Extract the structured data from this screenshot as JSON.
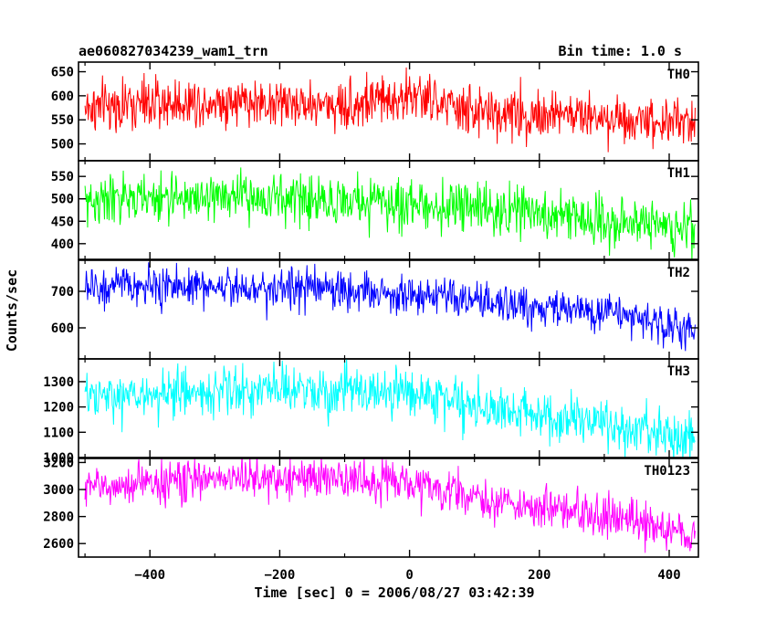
{
  "header": {
    "title": "ae060827034239_wam1_trn",
    "bin_time": "Bin time: 1.0 s"
  },
  "chart_data": {
    "type": "line",
    "xlabel": "Time [sec] 0 = 2006/08/27 03:42:39",
    "ylabel": "Counts/sec",
    "xlim": [
      -510,
      445
    ],
    "x_range": [
      -500,
      440
    ],
    "x_ticks": [
      -400,
      -200,
      0,
      200,
      400
    ],
    "x_tick_labels": [
      "−400",
      "−200",
      "0",
      "200",
      "400"
    ],
    "panels": [
      {
        "name": "TH0",
        "color": "#ff0000",
        "ylim": [
          465,
          670
        ],
        "y_ticks": [
          500,
          550,
          600,
          650
        ],
        "trend": [
          [
            -500,
            575
          ],
          [
            -300,
            590
          ],
          [
            -100,
            580
          ],
          [
            0,
            600
          ],
          [
            100,
            565
          ],
          [
            250,
            560
          ],
          [
            440,
            545
          ]
        ],
        "noise": 26
      },
      {
        "name": "TH1",
        "color": "#00ff00",
        "ylim": [
          365,
          585
        ],
        "y_ticks": [
          400,
          450,
          500,
          550
        ],
        "trend": [
          [
            -500,
            495
          ],
          [
            -300,
            505
          ],
          [
            -100,
            495
          ],
          [
            100,
            480
          ],
          [
            250,
            460
          ],
          [
            440,
            435
          ]
        ],
        "noise": 27
      },
      {
        "name": "TH2",
        "color": "#0000ff",
        "ylim": [
          515,
          785
        ],
        "y_ticks": [
          600,
          700
        ],
        "trend": [
          [
            -500,
            710
          ],
          [
            -300,
            715
          ],
          [
            -100,
            705
          ],
          [
            0,
            690
          ],
          [
            100,
            670
          ],
          [
            250,
            650
          ],
          [
            350,
            630
          ],
          [
            440,
            585
          ]
        ],
        "noise": 27
      },
      {
        "name": "TH3",
        "color": "#00ffff",
        "ylim": [
          1000,
          1390
        ],
        "y_ticks": [
          1000,
          1100,
          1200,
          1300
        ],
        "trend": [
          [
            -500,
            1230
          ],
          [
            -300,
            1265
          ],
          [
            -100,
            1260
          ],
          [
            0,
            1260
          ],
          [
            100,
            1205
          ],
          [
            250,
            1150
          ],
          [
            350,
            1105
          ],
          [
            440,
            1065
          ]
        ],
        "noise": 48
      },
      {
        "name": "TH0123",
        "color": "#ff00ff",
        "ylim": [
          2500,
          3230
        ],
        "y_ticks": [
          2600,
          2800,
          3000,
          3200
        ],
        "trend": [
          [
            -500,
            3010
          ],
          [
            -300,
            3085
          ],
          [
            -100,
            3080
          ],
          [
            0,
            3050
          ],
          [
            100,
            2940
          ],
          [
            200,
            2860
          ],
          [
            350,
            2770
          ],
          [
            440,
            2650
          ]
        ],
        "noise": 75
      }
    ]
  }
}
